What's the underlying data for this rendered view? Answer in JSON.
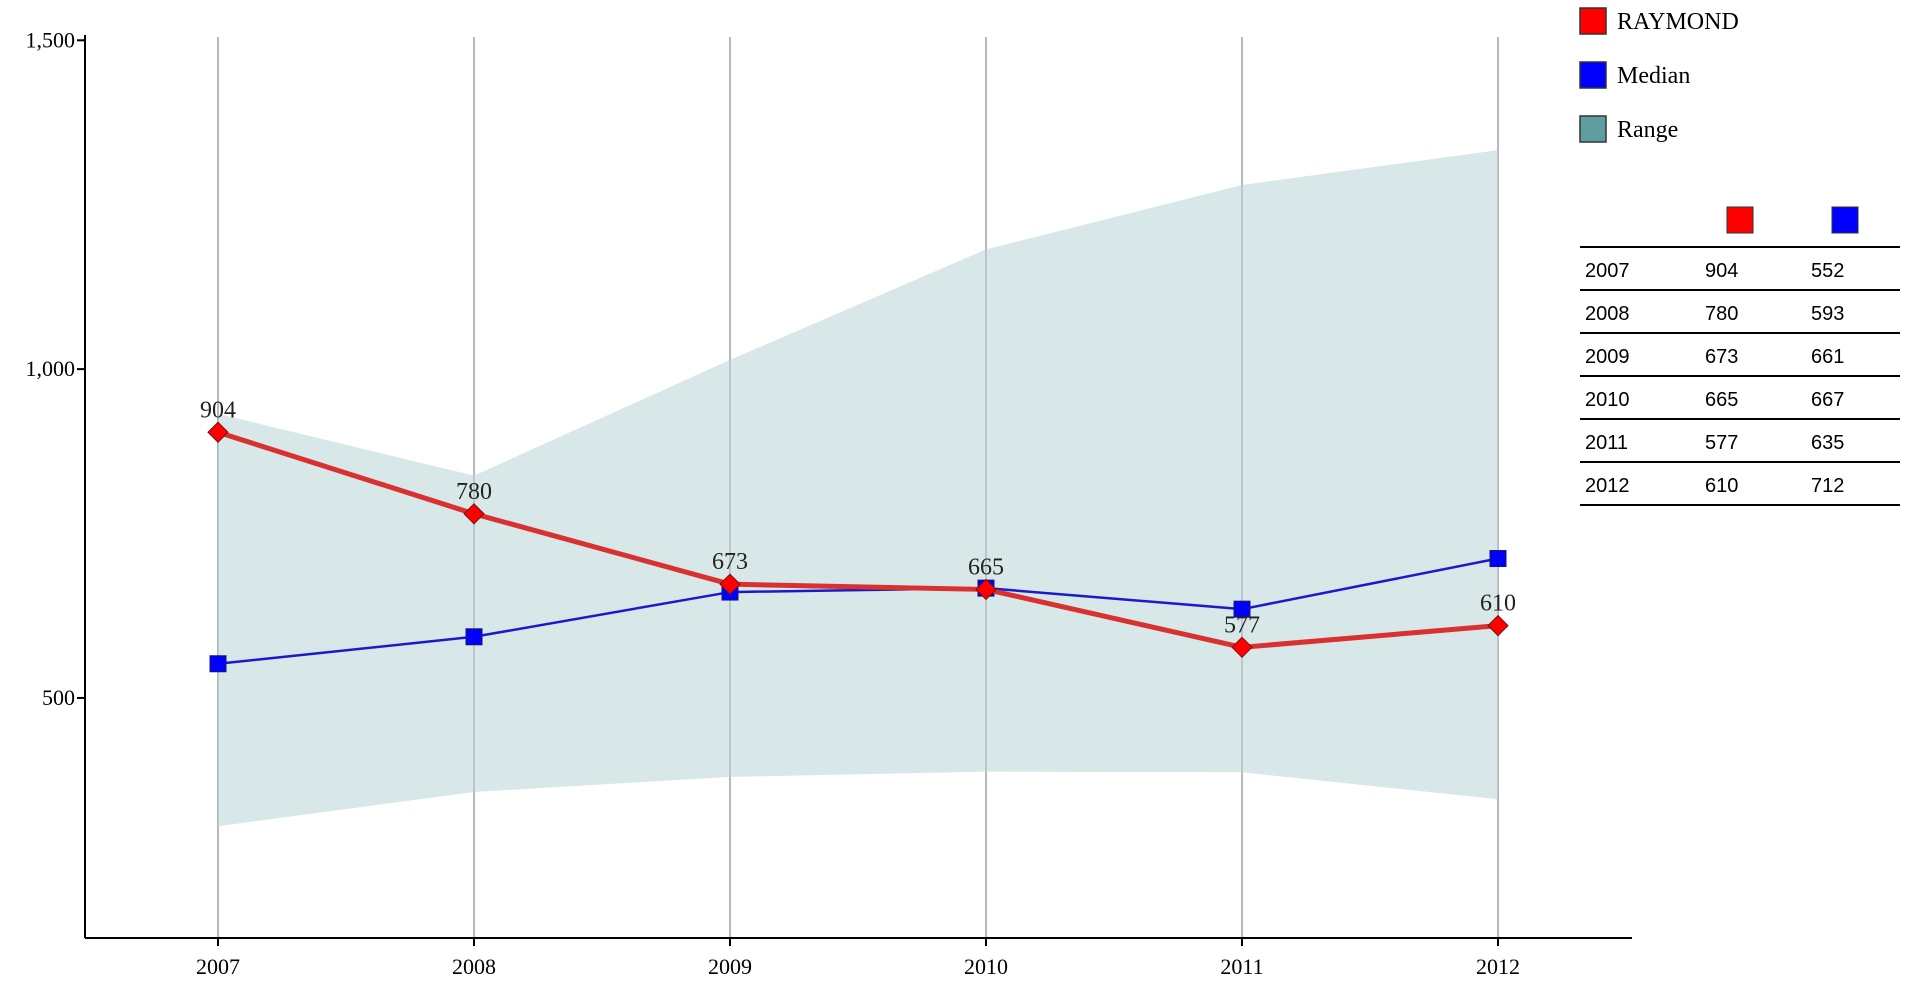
{
  "chart_data": {
    "type": "line",
    "title": "",
    "xlabel": "",
    "ylabel": "",
    "categories": [
      "2007",
      "2008",
      "2009",
      "2010",
      "2011",
      "2012"
    ],
    "ylim": [
      135,
      1505
    ],
    "yticks": [
      500,
      1000,
      1500
    ],
    "ytick_labels": [
      "500",
      "1,000",
      "1,500"
    ],
    "grid": "vertical",
    "legend_position": "top-right",
    "series": [
      {
        "name": "RAYMOND",
        "values": [
          904,
          780,
          673,
          665,
          577,
          610
        ],
        "color": "#ff0000",
        "line_color": "#d93030",
        "marker": "diamond",
        "data_labels": true
      },
      {
        "name": "Median",
        "values": [
          552,
          593,
          661,
          667,
          635,
          712
        ],
        "color": "#0000ff",
        "line_color": "#1a1acc",
        "marker": "square",
        "data_labels": false
      }
    ],
    "range": {
      "name": "Range",
      "color": "#5f9ea0",
      "fill_color": "#d6e6e7",
      "low": [
        305,
        357,
        380,
        388,
        387,
        346
      ],
      "high": [
        932,
        838,
        1014,
        1182,
        1280,
        1333
      ]
    },
    "table": {
      "rows": [
        [
          "2007",
          "904",
          "552"
        ],
        [
          "2008",
          "780",
          "593"
        ],
        [
          "2009",
          "673",
          "661"
        ],
        [
          "2010",
          "665",
          "667"
        ],
        [
          "2011",
          "577",
          "635"
        ],
        [
          "2012",
          "610",
          "712"
        ]
      ]
    }
  }
}
